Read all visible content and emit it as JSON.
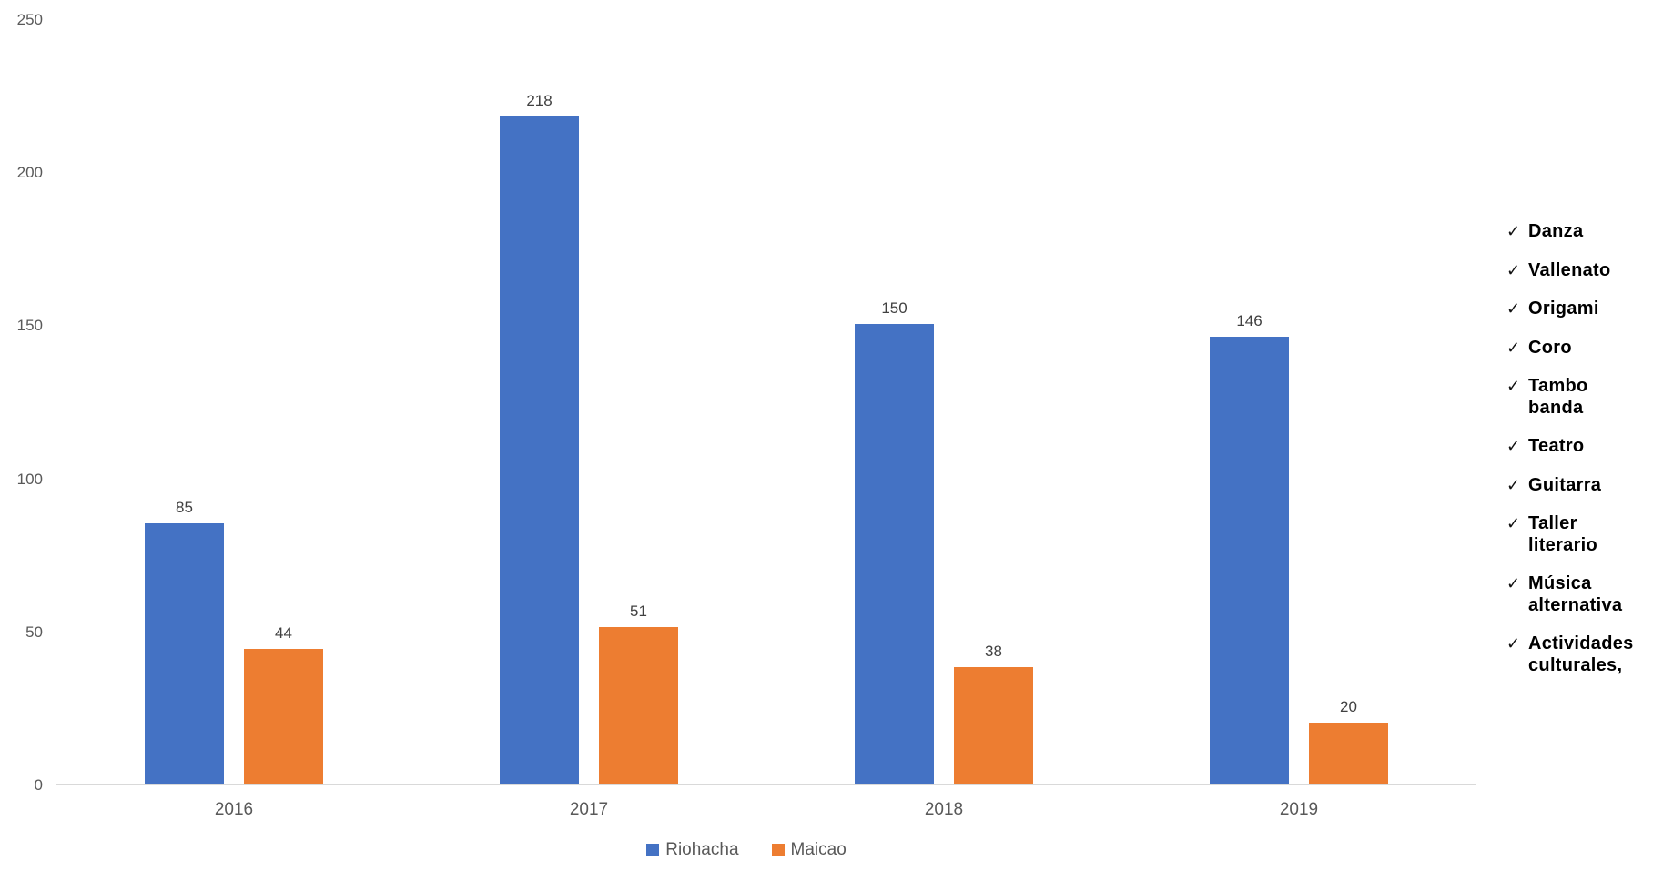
{
  "chart_data": {
    "type": "bar",
    "categories": [
      "2016",
      "2017",
      "2018",
      "2019"
    ],
    "series": [
      {
        "name": "Riohacha",
        "color": "#4472C4",
        "values": [
          85,
          218,
          150,
          146
        ]
      },
      {
        "name": "Maicao",
        "color": "#ED7D31",
        "values": [
          44,
          51,
          38,
          20
        ]
      }
    ],
    "title": "",
    "xlabel": "",
    "ylabel": "",
    "ylim": [
      0,
      250
    ],
    "y_ticks": [
      0,
      50,
      100,
      150,
      200,
      250
    ],
    "grid": false,
    "data_labels": true,
    "legend_position": "bottom"
  },
  "checklist": {
    "check_glyph": "✓",
    "items": [
      "Danza",
      "Vallenato",
      "Origami",
      "Coro",
      "Tambo banda",
      "Teatro",
      "Guitarra",
      "Taller literario",
      "Música alternativa",
      "Actividades culturales,"
    ]
  },
  "colors": {
    "axis_line": "#D9D9D9",
    "axis_text": "#595959",
    "data_label_text": "#404040",
    "series_blue": "#4472C4",
    "series_orange": "#ED7D31",
    "checklist_text": "#000000"
  }
}
